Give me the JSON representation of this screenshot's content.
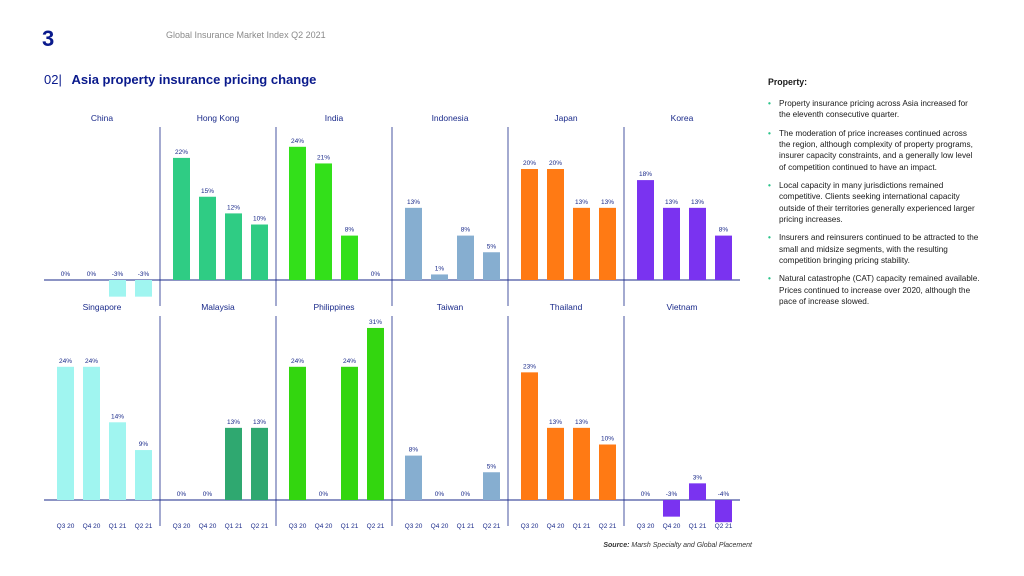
{
  "header": {
    "page_number": "3",
    "doc_title": "Global Insurance Market Index Q2 2021"
  },
  "heading": {
    "number": "02|",
    "title": "Asia property insurance pricing change"
  },
  "sidebar": {
    "heading": "Property:",
    "bullet_symbol": "•",
    "bullets": [
      "Property insurance pricing across Asia increased for the eleventh consecutive quarter.",
      "The moderation of price increases continued across the region, although complexity of property programs, insurer capacity constraints, and a generally low level of competition continued to have an impact.",
      "Local capacity in many jurisdictions remained competitive. Clients seeking international capacity outside of their territories generally experienced larger pricing increases.",
      "Insurers and reinsurers continued to be attracted to the small and midsize segments, with the resulting competition bringing pricing stability.",
      "Natural catastrophe (CAT) capacity remained available. Prices continued to increase over 2020, although the pace of increase slowed."
    ]
  },
  "source": {
    "label": "Source:",
    "text": "Marsh Specialty and Global Placement"
  },
  "colors": {
    "brand": "#0a1a8c",
    "axis": "#1a2a8a",
    "label": "#1a2a8a",
    "bullet": "#2bc48a"
  },
  "chart_data": {
    "type": "bar",
    "title": "Asia property insurance pricing change",
    "categories": [
      "Q3 20",
      "Q4 20",
      "Q1 21",
      "Q2 21"
    ],
    "value_suffix": "%",
    "ylim": [
      -5,
      31
    ],
    "series": [
      {
        "name": "China",
        "values": [
          0,
          0,
          -3,
          -3
        ],
        "color": "#a0f5f0"
      },
      {
        "name": "Hong Kong",
        "values": [
          22,
          15,
          12,
          10
        ],
        "color": "#2fcc84"
      },
      {
        "name": "India",
        "values": [
          24,
          21,
          8,
          0
        ],
        "color": "#33e01a"
      },
      {
        "name": "Indonesia",
        "values": [
          13,
          1,
          8,
          5
        ],
        "color": "#86aed0"
      },
      {
        "name": "Japan",
        "values": [
          20,
          20,
          13,
          13
        ],
        "color": "#ff7a14"
      },
      {
        "name": "Korea",
        "values": [
          18,
          13,
          13,
          8
        ],
        "color": "#7a33f0"
      },
      {
        "name": "Singapore",
        "values": [
          24,
          24,
          14,
          9
        ],
        "color": "#a0f5f0"
      },
      {
        "name": "Malaysia",
        "values": [
          0,
          0,
          13,
          13
        ],
        "color": "#2fa870"
      },
      {
        "name": "Philippines",
        "values": [
          24,
          0,
          24,
          31
        ],
        "color": "#33d60f"
      },
      {
        "name": "Taiwan",
        "values": [
          8,
          0,
          0,
          5
        ],
        "color": "#86aed0"
      },
      {
        "name": "Thailand",
        "values": [
          23,
          13,
          13,
          10
        ],
        "color": "#ff7a14"
      },
      {
        "name": "Vietnam",
        "values": [
          0,
          -3,
          3,
          -4
        ],
        "color": "#7a33f0"
      }
    ]
  }
}
